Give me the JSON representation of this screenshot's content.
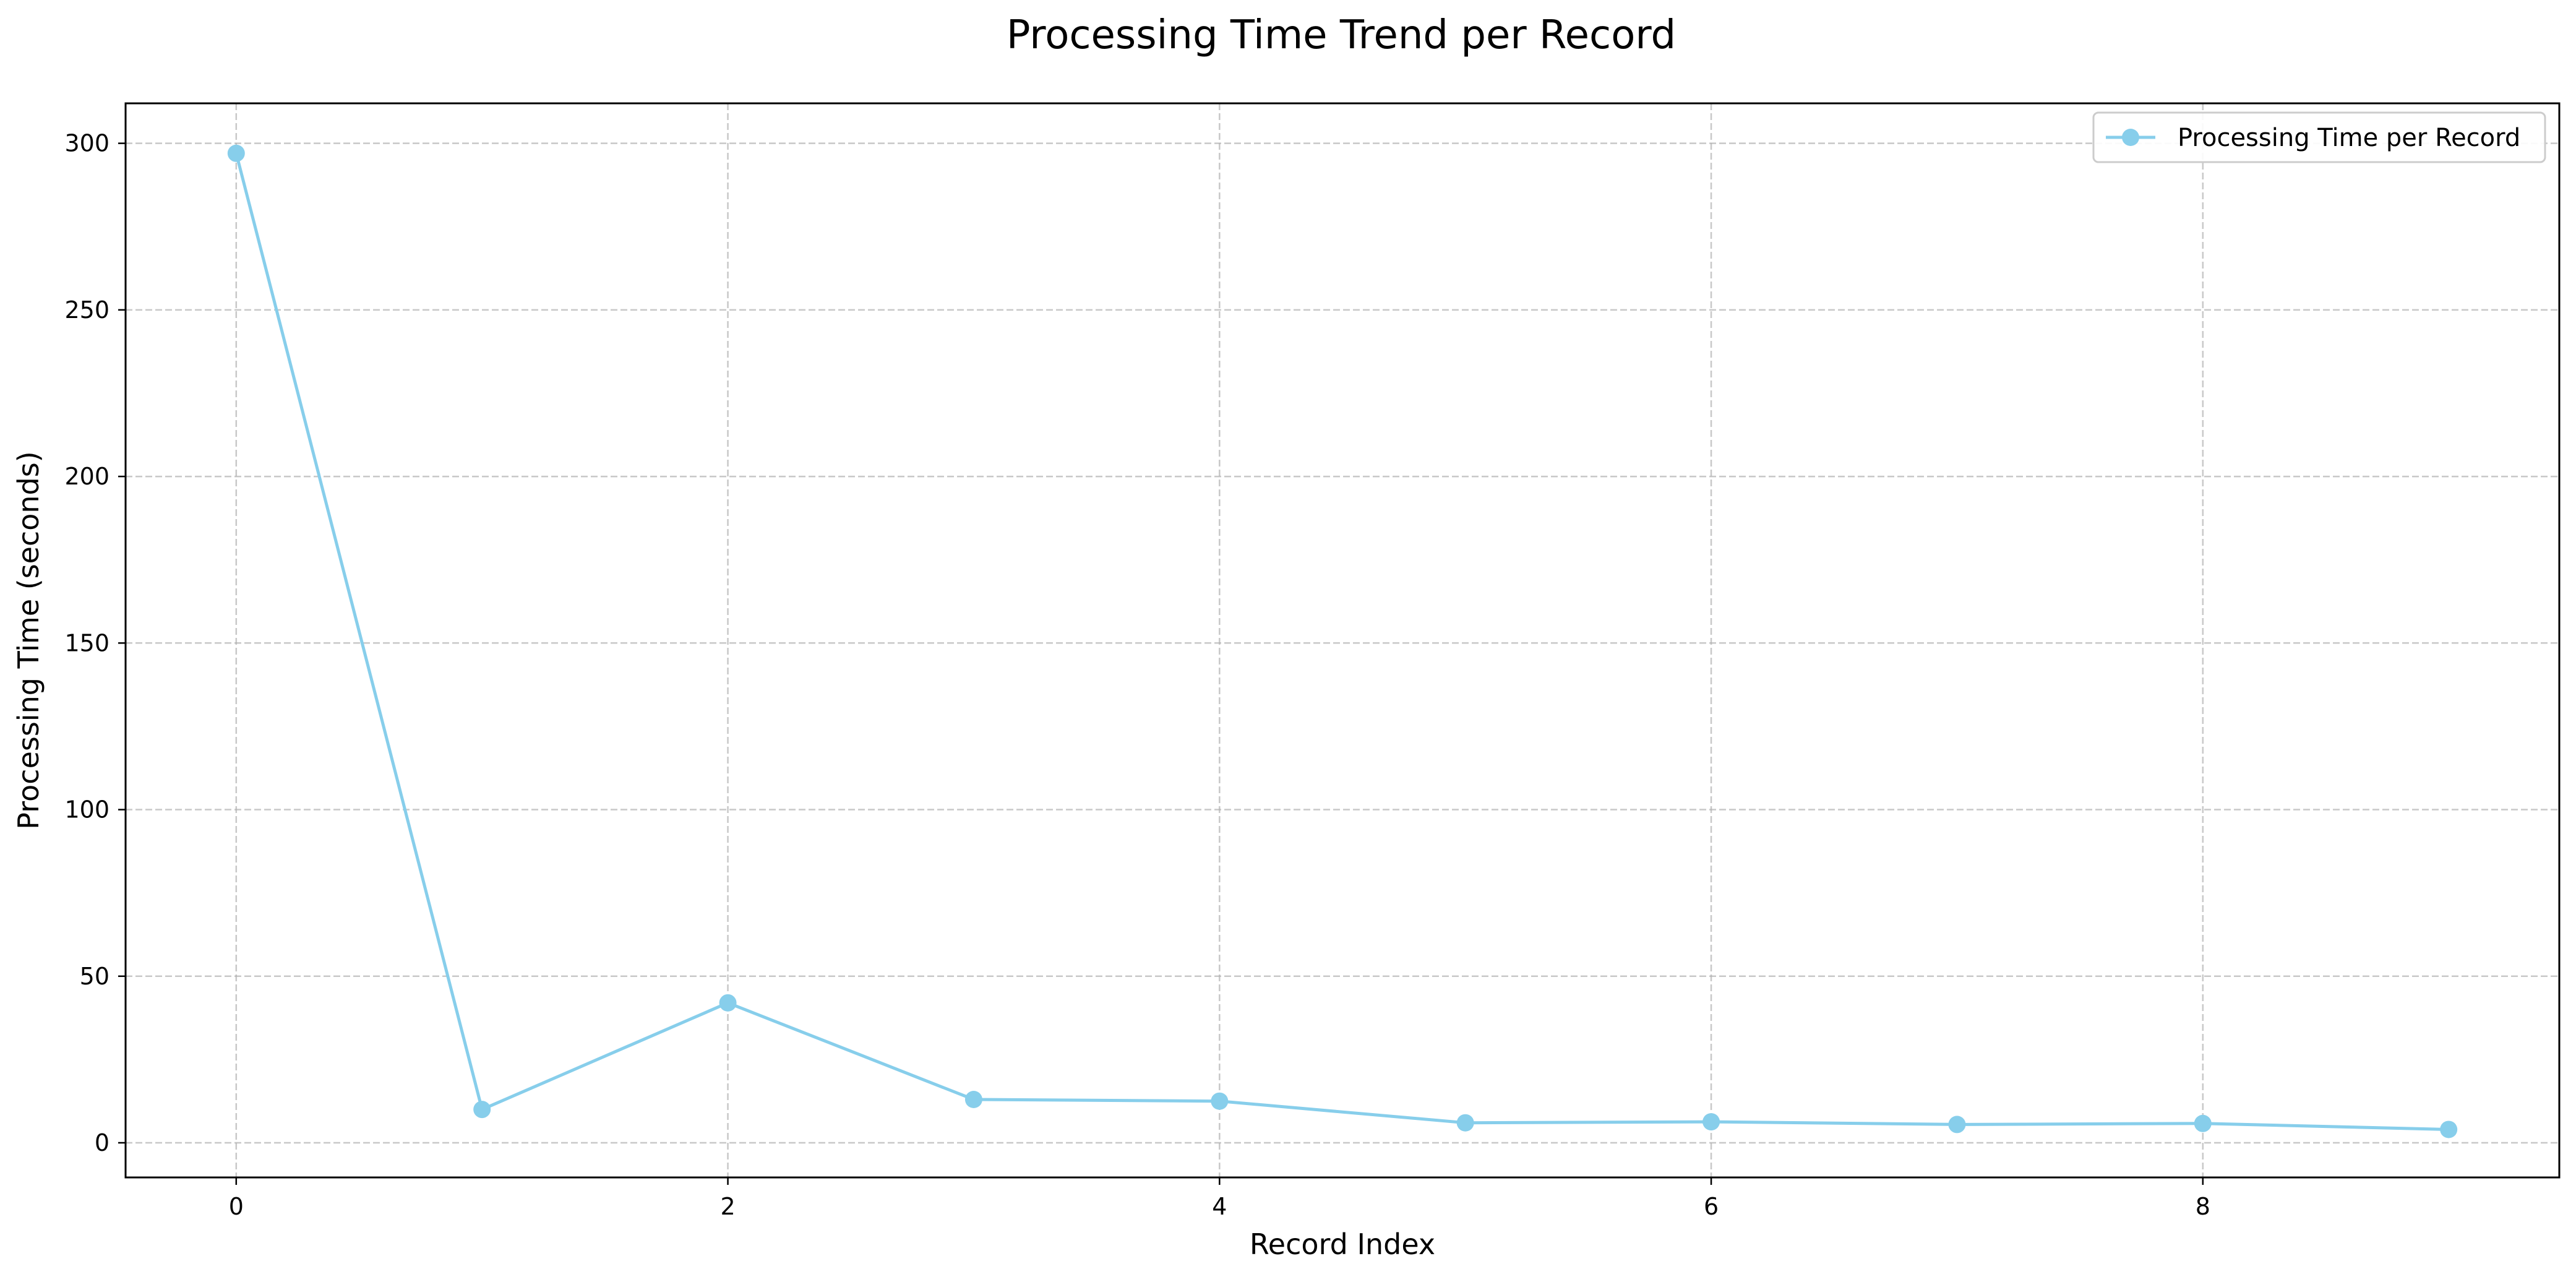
{
  "chart_data": {
    "type": "line",
    "title": "Processing Time Trend per Record",
    "xlabel": "Record Index",
    "ylabel": "Processing Time (seconds)",
    "x": [
      0,
      1,
      2,
      3,
      4,
      5,
      6,
      7,
      8,
      9
    ],
    "series": [
      {
        "name": "Processing Time per Record",
        "color": "#87CEEB",
        "marker": "circle",
        "values": [
          297,
          10,
          42,
          13,
          12.5,
          6,
          6.3,
          5.5,
          5.8,
          4
        ]
      }
    ],
    "xlim": [
      -0.45,
      9.45
    ],
    "ylim": [
      -10.4,
      312
    ],
    "xticks": [
      0,
      2,
      4,
      6,
      8
    ],
    "xtick_labels": [
      "0",
      "2",
      "4",
      "6",
      "8"
    ],
    "yticks": [
      0,
      50,
      100,
      150,
      200,
      250,
      300
    ],
    "ytick_labels": [
      "0",
      "50",
      "100",
      "150",
      "200",
      "250",
      "300"
    ],
    "grid": true,
    "grid_style": "dashed",
    "legend_position": "upper-right"
  }
}
